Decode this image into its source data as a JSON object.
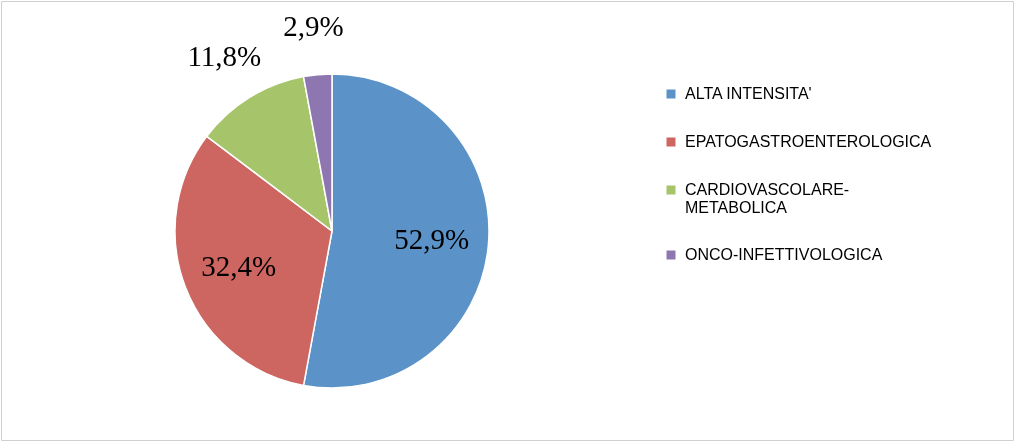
{
  "chart_data": {
    "type": "pie",
    "categories": [
      "ALTA INTENSITA'",
      "EPATOGASTROENTEROLOGICA",
      "CARDIOVASCOLARE-METABOLICA",
      "ONCO-INFETTIVOLOGICA"
    ],
    "values": [
      52.9,
      32.4,
      11.8,
      2.9
    ],
    "value_labels": [
      "52,9%",
      "32,4%",
      "11,8%",
      "2,9%"
    ],
    "colors": [
      "#5b93c9",
      "#cd6660",
      "#a6c46a",
      "#8e77b0"
    ],
    "legend": "right"
  }
}
